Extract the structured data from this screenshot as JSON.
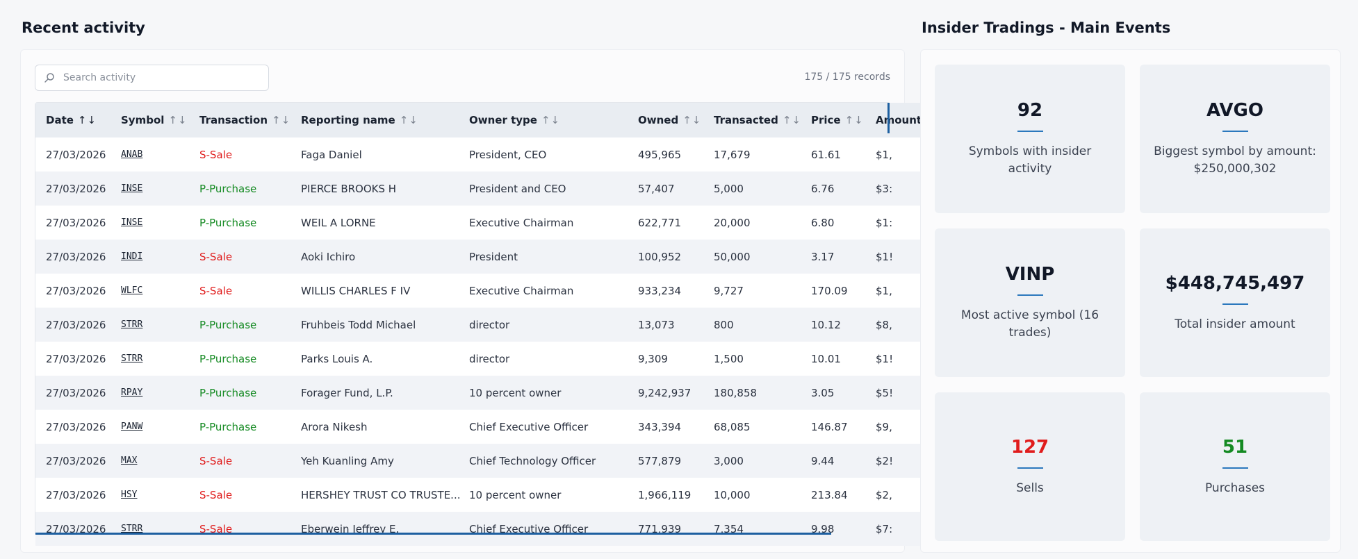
{
  "activity": {
    "title": "Recent activity",
    "search_placeholder": "Search activity",
    "records": "175 / 175 records",
    "columns": [
      "Date",
      "Symbol",
      "Transaction",
      "Reporting name",
      "Owner type",
      "Owned",
      "Transacted",
      "Price",
      "Amount"
    ],
    "sort_icons": "↑↓",
    "rows": [
      {
        "date": "27/03/2026",
        "symbol": "ANAB",
        "transaction": "S-Sale",
        "name": "Faga Daniel",
        "owner_type": "President, CEO",
        "owned": "495,965",
        "transacted": "17,679",
        "price": "61.61",
        "amount": "$1,"
      },
      {
        "date": "27/03/2026",
        "symbol": "INSE",
        "transaction": "P-Purchase",
        "name": "PIERCE BROOKS H",
        "owner_type": "President and CEO",
        "owned": "57,407",
        "transacted": "5,000",
        "price": "6.76",
        "amount": "$3:"
      },
      {
        "date": "27/03/2026",
        "symbol": "INSE",
        "transaction": "P-Purchase",
        "name": "WEIL A LORNE",
        "owner_type": "Executive Chairman",
        "owned": "622,771",
        "transacted": "20,000",
        "price": "6.80",
        "amount": "$1:"
      },
      {
        "date": "27/03/2026",
        "symbol": "INDI",
        "transaction": "S-Sale",
        "name": "Aoki Ichiro",
        "owner_type": "President",
        "owned": "100,952",
        "transacted": "50,000",
        "price": "3.17",
        "amount": "$1!"
      },
      {
        "date": "27/03/2026",
        "symbol": "WLFC",
        "transaction": "S-Sale",
        "name": "WILLIS CHARLES F IV",
        "owner_type": "Executive Chairman",
        "owned": "933,234",
        "transacted": "9,727",
        "price": "170.09",
        "amount": "$1,"
      },
      {
        "date": "27/03/2026",
        "symbol": "STRR",
        "transaction": "P-Purchase",
        "name": "Fruhbeis Todd Michael",
        "owner_type": "director",
        "owned": "13,073",
        "transacted": "800",
        "price": "10.12",
        "amount": "$8,"
      },
      {
        "date": "27/03/2026",
        "symbol": "STRR",
        "transaction": "P-Purchase",
        "name": "Parks Louis A.",
        "owner_type": "director",
        "owned": "9,309",
        "transacted": "1,500",
        "price": "10.01",
        "amount": "$1!"
      },
      {
        "date": "27/03/2026",
        "symbol": "RPAY",
        "transaction": "P-Purchase",
        "name": "Forager Fund, L.P.",
        "owner_type": "10 percent owner",
        "owned": "9,242,937",
        "transacted": "180,858",
        "price": "3.05",
        "amount": "$5!"
      },
      {
        "date": "27/03/2026",
        "symbol": "PANW",
        "transaction": "P-Purchase",
        "name": "Arora Nikesh",
        "owner_type": "Chief Executive Officer",
        "owned": "343,394",
        "transacted": "68,085",
        "price": "146.87",
        "amount": "$9,"
      },
      {
        "date": "27/03/2026",
        "symbol": "MAX",
        "transaction": "S-Sale",
        "name": "Yeh Kuanling Amy",
        "owner_type": "Chief Technology Officer",
        "owned": "577,879",
        "transacted": "3,000",
        "price": "9.44",
        "amount": "$2!"
      },
      {
        "date": "27/03/2026",
        "symbol": "HSY",
        "transaction": "S-Sale",
        "name": "HERSHEY TRUST CO TRUSTE...",
        "owner_type": "10 percent owner",
        "owned": "1,966,119",
        "transacted": "10,000",
        "price": "213.84",
        "amount": "$2,"
      },
      {
        "date": "27/03/2026",
        "symbol": "STRR",
        "transaction": "S-Sale",
        "name": "Eberwein Jeffrey E.",
        "owner_type": "Chief Executive Officer",
        "owned": "771,939",
        "transacted": "7,354",
        "price": "9.98",
        "amount": "$7:"
      }
    ]
  },
  "events": {
    "title": "Insider Tradings - Main Events",
    "stats": [
      {
        "value": "92",
        "label": "Symbols with insider activity",
        "tone": "default"
      },
      {
        "value": "AVGO",
        "label": "Biggest symbol by amount: $250,000,302",
        "tone": "default"
      },
      {
        "value": "VINP",
        "label": "Most active symbol (16 trades)",
        "tone": "default"
      },
      {
        "value": "$448,745,497",
        "label": "Total insider amount",
        "tone": "default"
      },
      {
        "value": "127",
        "label": "Sells",
        "tone": "red"
      },
      {
        "value": "51",
        "label": "Purchases",
        "tone": "green"
      }
    ]
  },
  "colors": {
    "sale": "#e01c1c",
    "purchase": "#148a22",
    "accent": "#2b78bd"
  },
  "icons": {
    "search": "search-icon"
  }
}
